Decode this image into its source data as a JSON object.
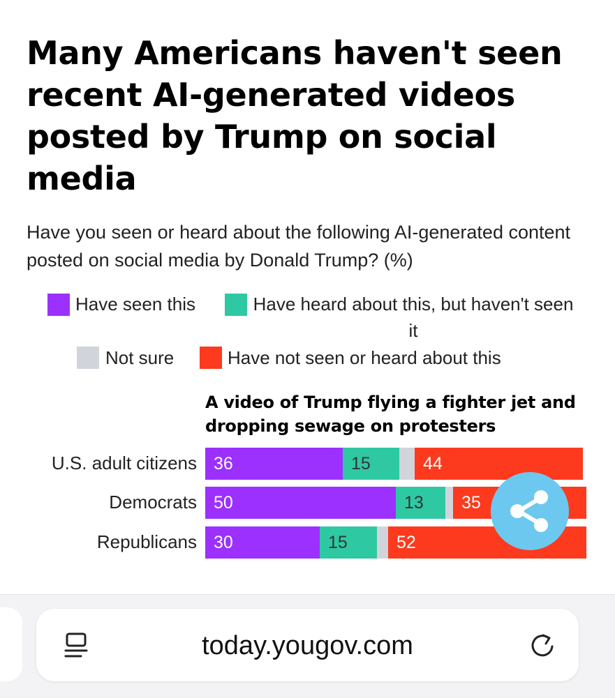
{
  "title": "Many Americans haven't seen recent AI-generated videos posted by Trump on social media",
  "subtitle": "Have you seen or heard about the following AI-generated content posted on social media by Donald Trump? (%)",
  "legend": [
    {
      "label": "Have seen this",
      "color": "#9b30ff"
    },
    {
      "label": "Have heard about this, but haven't seen it",
      "color": "#2ec9a2"
    },
    {
      "label": "Not sure",
      "color": "#d2d4db"
    },
    {
      "label": "Have not seen or heard about this",
      "color": "#fd3a1e"
    }
  ],
  "chart_data": {
    "type": "bar",
    "orientation": "horizontal-stacked",
    "title": "A video of Trump flying a fighter jet and dropping sewage on protesters",
    "unit": "%",
    "categories": [
      "U.S. adult citizens",
      "Democrats",
      "Republicans"
    ],
    "series": [
      {
        "name": "Have seen this",
        "color": "#9b30ff",
        "values": [
          36,
          50,
          30
        ]
      },
      {
        "name": "Have heard about this, but haven't seen it",
        "color": "#2ec9a2",
        "values": [
          15,
          13,
          15
        ]
      },
      {
        "name": "Not sure",
        "color": "#d2d4db",
        "values": [
          4,
          2,
          3
        ]
      },
      {
        "name": "Have not seen or heard about this",
        "color": "#fd3a1e",
        "values": [
          44,
          35,
          52
        ]
      }
    ],
    "xlim": [
      0,
      100
    ]
  },
  "browser": {
    "url": "today.yougov.com"
  },
  "icons": {
    "share": "share-icon",
    "reader": "reader-icon",
    "reload": "reload-icon"
  }
}
